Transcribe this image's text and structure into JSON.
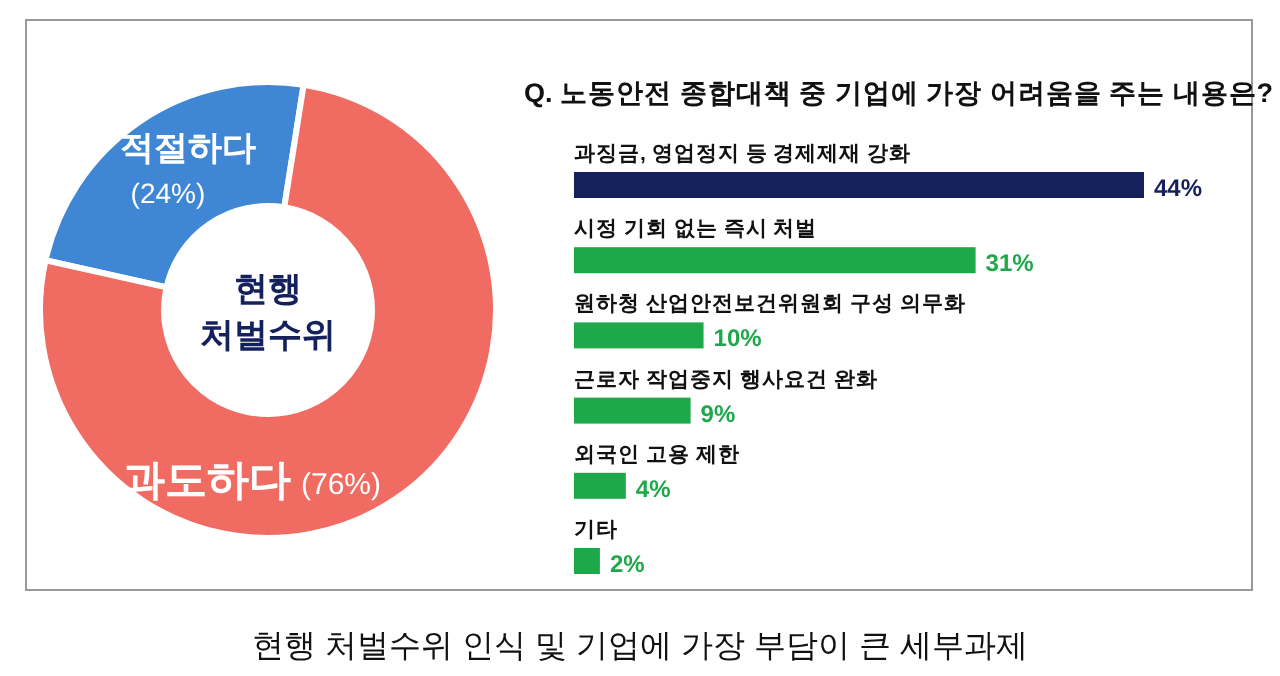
{
  "chart_data": [
    {
      "type": "donut",
      "categories": [
        "적절하다",
        "과도하다"
      ],
      "values": [
        24,
        76
      ],
      "colors": [
        "#3f86d4",
        "#f06b62"
      ],
      "value_labels": [
        "(24%)",
        "(76%)"
      ],
      "annotations": [
        "현행\n처벌수위"
      ]
    },
    {
      "type": "bar",
      "orientation": "horizontal",
      "title": "Q. 노동안전 종합대책 중 기업에 가장 어려움을 주는 내용은?",
      "categories": [
        "과징금, 영업정지 등 경제제재 강화",
        "시정 기회 없는 즉시 처벌",
        "원하청 산업안전보건위원회 구성 의무화",
        "근로자 작업중지 행사요건 완화",
        "외국인 고용 제한",
        "기타"
      ],
      "values": [
        44,
        31,
        10,
        9,
        4,
        2
      ],
      "colors": [
        "#14215a",
        "#1ea84a",
        "#1ea84a",
        "#1ea84a",
        "#1ea84a",
        "#1ea84a"
      ],
      "value_labels": [
        "44%",
        "31%",
        "10%",
        "9%",
        "4%",
        "2%"
      ],
      "annotations": [
        "현행 처벌수위 인식 및 기업에 가장 부담이 큰 세부과제"
      ]
    }
  ]
}
